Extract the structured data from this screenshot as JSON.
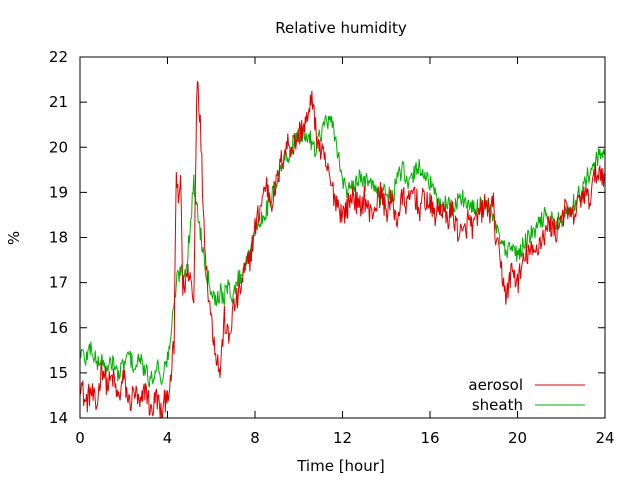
{
  "chart_data": {
    "type": "line",
    "title": "Relative humidity",
    "xlabel": "Time [hour]",
    "ylabel": "%",
    "xlim": [
      0,
      24
    ],
    "ylim": [
      14,
      22
    ],
    "xticks": [
      0,
      4,
      8,
      12,
      16,
      20,
      24
    ],
    "yticks": [
      14,
      15,
      16,
      17,
      18,
      19,
      20,
      21,
      22
    ],
    "grid": false,
    "legend_position": "bottom-right",
    "series": [
      {
        "name": "aerosol",
        "color": "#e00000",
        "x": [
          0,
          0.25,
          0.5,
          0.75,
          1,
          1.25,
          1.5,
          1.75,
          2,
          2.25,
          2.5,
          2.75,
          3,
          3.25,
          3.5,
          3.75,
          4,
          4.1,
          4.2,
          4.3,
          4.4,
          4.5,
          4.6,
          4.7,
          4.8,
          5.0,
          5.2,
          5.35,
          5.5,
          5.65,
          5.8,
          6.0,
          6.2,
          6.4,
          6.6,
          6.8,
          7.0,
          7.25,
          7.5,
          7.75,
          8,
          8.25,
          8.5,
          8.75,
          9,
          9.25,
          9.5,
          9.75,
          10,
          10.25,
          10.5,
          10.6,
          10.75,
          11,
          11.25,
          11.5,
          11.75,
          12,
          12.25,
          12.5,
          12.75,
          13,
          13.25,
          13.5,
          13.75,
          14,
          14.25,
          14.5,
          14.75,
          15,
          15.25,
          15.5,
          15.75,
          16,
          16.25,
          16.5,
          16.75,
          17,
          17.25,
          17.5,
          17.75,
          18,
          18.25,
          18.5,
          18.75,
          18.9,
          19.0,
          19.25,
          19.5,
          19.75,
          20,
          20.25,
          20.5,
          20.75,
          21,
          21.25,
          21.5,
          21.75,
          22,
          22.25,
          22.5,
          22.75,
          23,
          23.25,
          23.5,
          23.75,
          24
        ],
        "y": [
          14.9,
          14.3,
          14.6,
          14.2,
          15.2,
          14.7,
          14.9,
          14.4,
          14.9,
          14.3,
          14.6,
          14.2,
          14.7,
          14.1,
          14.5,
          14.0,
          14.7,
          14.4,
          15.2,
          15.6,
          19.5,
          18.6,
          19.4,
          16.8,
          17.0,
          17.3,
          16.5,
          21.8,
          20.5,
          18.5,
          17.2,
          16.2,
          15.5,
          15.0,
          16.2,
          15.7,
          16.4,
          16.7,
          17.2,
          17.5,
          18.2,
          18.7,
          19.2,
          18.8,
          19.2,
          19.8,
          20.1,
          20.0,
          20.3,
          20.5,
          20.7,
          21.3,
          20.4,
          19.9,
          19.6,
          19.1,
          18.8,
          18.5,
          18.7,
          19.0,
          18.6,
          18.9,
          18.5,
          18.7,
          19.0,
          18.6,
          18.8,
          18.4,
          18.9,
          18.7,
          19.1,
          18.6,
          18.9,
          18.7,
          18.5,
          18.7,
          18.4,
          18.6,
          18.2,
          18.0,
          18.4,
          18.2,
          18.5,
          18.7,
          18.6,
          18.7,
          18.0,
          17.3,
          16.7,
          17.3,
          17.0,
          17.4,
          17.7,
          17.6,
          17.9,
          18.1,
          18.3,
          18.1,
          18.5,
          18.6,
          18.4,
          18.7,
          19.0,
          18.8,
          19.3,
          19.5,
          19.4
        ],
        "jitter": 0.3
      },
      {
        "name": "sheath",
        "color": "#00b000",
        "x": [
          0,
          0.25,
          0.5,
          0.75,
          1,
          1.25,
          1.5,
          1.75,
          2,
          2.25,
          2.5,
          2.75,
          3,
          3.25,
          3.5,
          3.75,
          4,
          4.2,
          4.4,
          4.6,
          4.8,
          5.0,
          5.2,
          5.4,
          5.6,
          5.8,
          6.0,
          6.2,
          6.4,
          6.6,
          6.8,
          7.0,
          7.25,
          7.5,
          7.75,
          8,
          8.25,
          8.5,
          8.75,
          9,
          9.25,
          9.5,
          9.75,
          10,
          10.25,
          10.5,
          10.75,
          11,
          11.25,
          11.5,
          11.75,
          12,
          12.25,
          12.5,
          12.75,
          13,
          13.25,
          13.5,
          13.75,
          14,
          14.25,
          14.5,
          14.75,
          15,
          15.25,
          15.5,
          15.75,
          16,
          16.25,
          16.5,
          16.75,
          17,
          17.25,
          17.5,
          17.75,
          18,
          18.25,
          18.5,
          18.75,
          19,
          19.25,
          19.5,
          19.75,
          20,
          20.25,
          20.5,
          20.75,
          21,
          21.25,
          21.5,
          21.75,
          22,
          22.25,
          22.5,
          22.75,
          23,
          23.25,
          23.5,
          23.75,
          24
        ],
        "y": [
          15.5,
          15.3,
          15.6,
          15.2,
          15.3,
          15.0,
          15.3,
          14.9,
          15.2,
          15.4,
          15.1,
          15.3,
          15.0,
          14.8,
          15.2,
          14.9,
          15.3,
          16.0,
          17.0,
          17.3,
          17.2,
          18.0,
          19.2,
          18.5,
          17.8,
          17.2,
          16.9,
          16.6,
          16.8,
          16.7,
          16.9,
          16.7,
          17.1,
          17.3,
          17.8,
          18.1,
          18.4,
          18.6,
          18.9,
          19.2,
          19.6,
          19.8,
          20.1,
          20.2,
          20.3,
          20.2,
          20.0,
          20.3,
          20.6,
          20.5,
          20.0,
          19.3,
          19.0,
          19.1,
          19.3,
          19.2,
          19.4,
          19.0,
          18.9,
          19.1,
          18.8,
          19.3,
          19.5,
          19.1,
          19.4,
          19.6,
          19.4,
          19.2,
          18.9,
          18.7,
          18.8,
          18.6,
          18.8,
          18.9,
          18.7,
          18.6,
          18.7,
          18.8,
          18.6,
          18.2,
          17.9,
          17.6,
          17.8,
          17.6,
          17.8,
          18.0,
          18.1,
          18.3,
          18.5,
          18.4,
          18.3,
          18.4,
          18.5,
          18.7,
          18.9,
          19.1,
          19.4,
          19.6,
          19.8,
          19.9
        ],
        "jitter": 0.22
      }
    ]
  }
}
